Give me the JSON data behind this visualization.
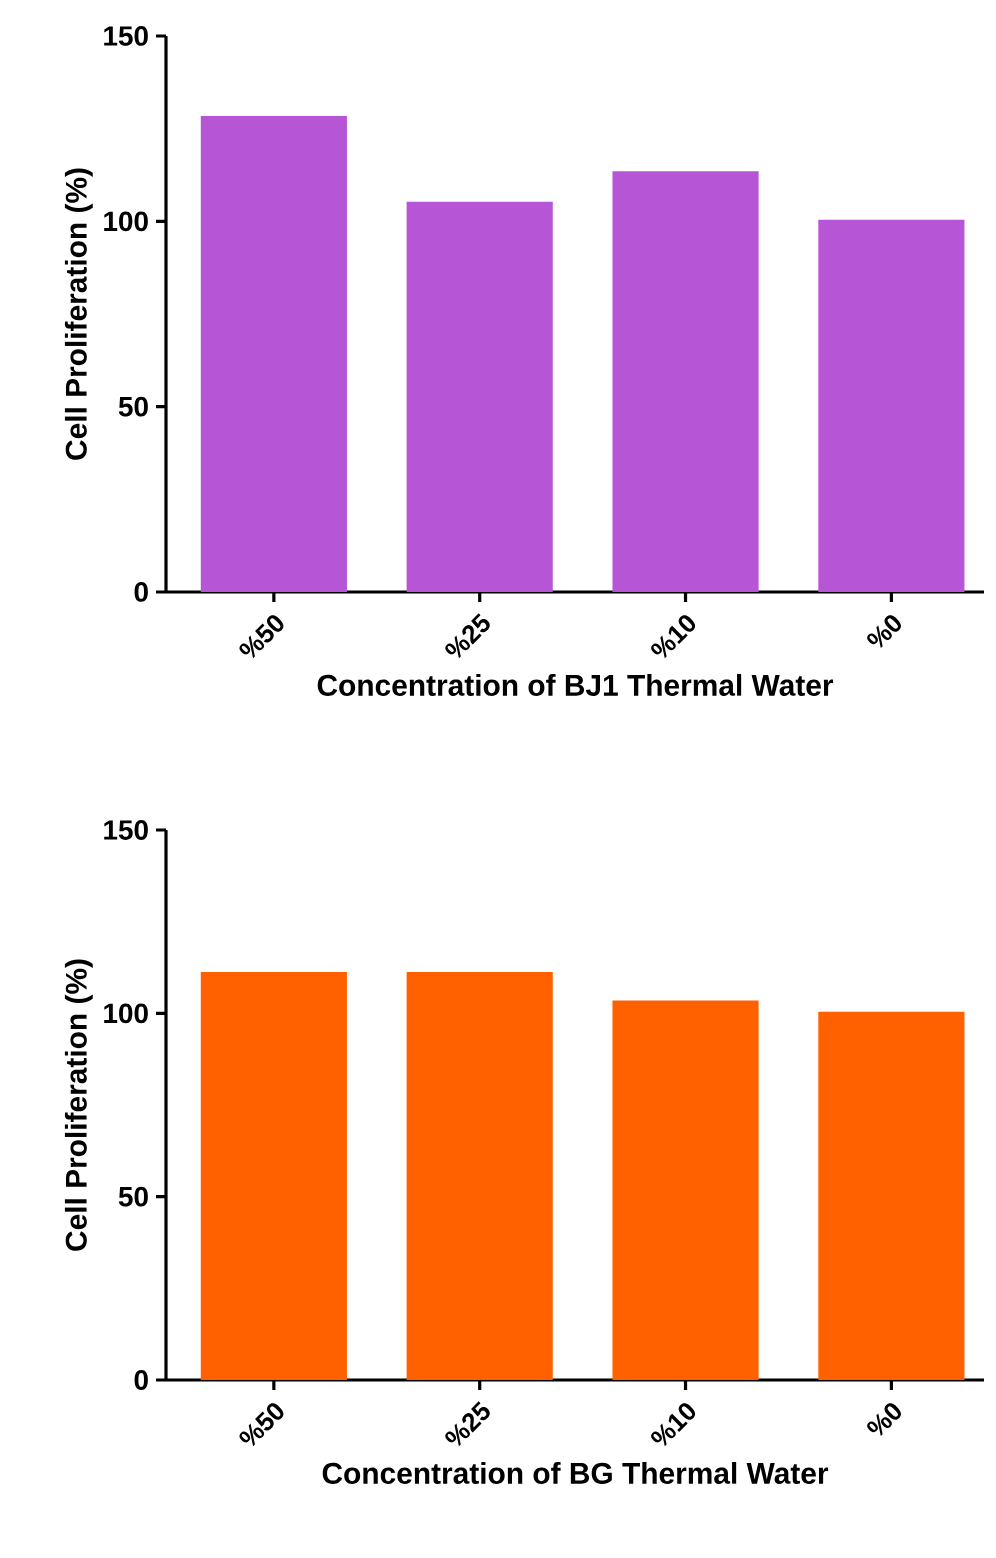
{
  "chart_data": [
    {
      "type": "bar",
      "xlabel": "Concentration of BJ1 Thermal Water",
      "ylabel": "Cell Proliferation (%)",
      "categories": [
        "%50",
        "%25",
        "%10",
        "%0"
      ],
      "values": [
        128.4,
        105.3,
        113.5,
        100.4
      ],
      "color": "#b655d6",
      "ylim": [
        0,
        150
      ],
      "yticks": [
        0,
        50,
        100,
        150
      ]
    },
    {
      "type": "bar",
      "xlabel": "Concentration of BG Thermal Water",
      "ylabel": "Cell Proliferation (%)",
      "categories": [
        "%50",
        "%25",
        "%10",
        "%0"
      ],
      "values": [
        111.3,
        111.3,
        103.5,
        100.4
      ],
      "color": "#ff6000",
      "ylim": [
        0,
        150
      ],
      "yticks": [
        0,
        50,
        100,
        150
      ]
    }
  ]
}
